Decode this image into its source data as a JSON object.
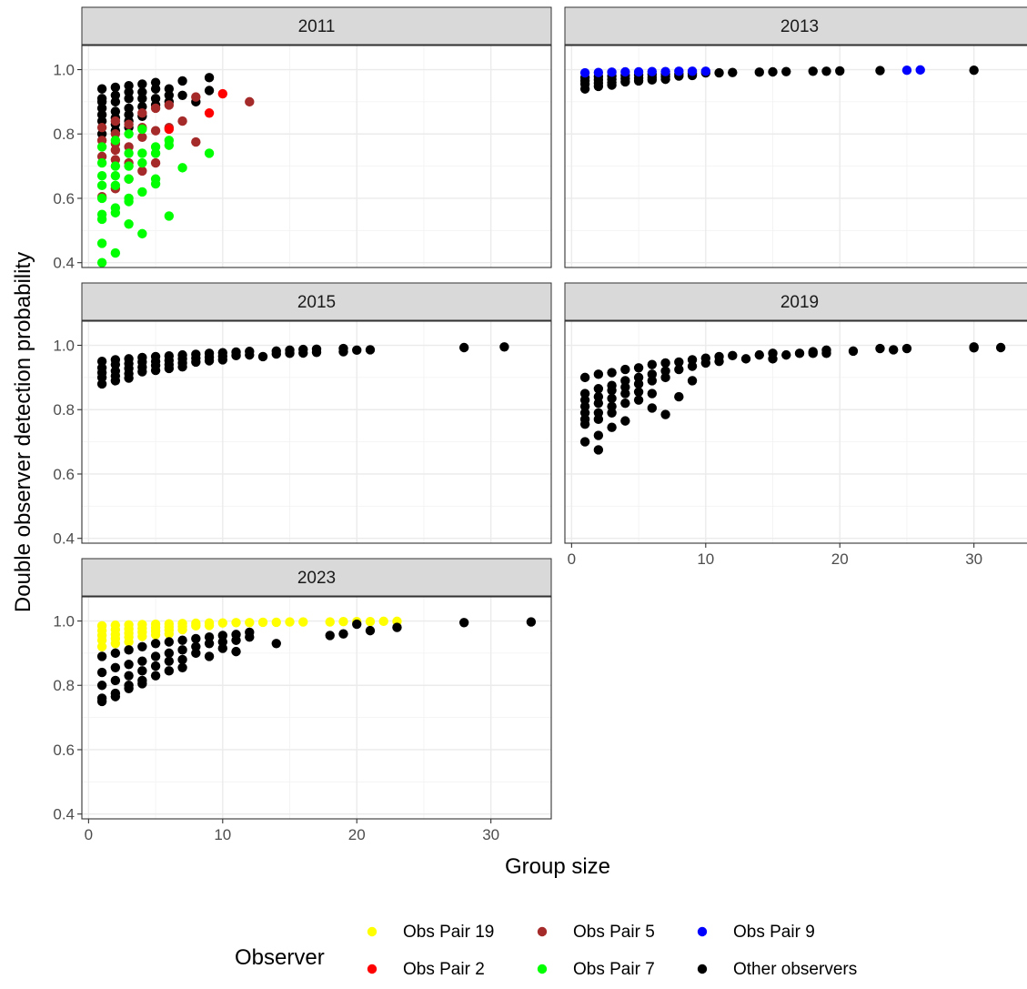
{
  "chart_data": {
    "type": "scatter",
    "xlabel": "Group size",
    "ylabel": "Double observer detection probability",
    "xlim": [
      -0.5,
      34.5
    ],
    "ylim": [
      0.385,
      1.075
    ],
    "x_ticks": [
      0,
      10,
      20,
      30
    ],
    "y_ticks": [
      0.4,
      0.6,
      0.8,
      1.0
    ],
    "y_tick_labels": [
      "0.4",
      "0.6",
      "0.8",
      "1.0"
    ],
    "grid": true,
    "legend": {
      "title": "Observer",
      "placement": "bottom",
      "entries": [
        {
          "name": "Obs Pair 19",
          "color": "#ffff00"
        },
        {
          "name": "Obs Pair 5",
          "color": "#a52a2a"
        },
        {
          "name": "Obs Pair 9",
          "color": "#0000ff"
        },
        {
          "name": "Obs Pair 2",
          "color": "#ff0000"
        },
        {
          "name": "Obs Pair 7",
          "color": "#00ff00"
        },
        {
          "name": "Other observers",
          "color": "#000000"
        }
      ]
    },
    "panels": [
      {
        "title": "2011",
        "series": [
          {
            "name": "Other observers",
            "x": [
              1,
              1,
              1,
              1,
              1,
              1,
              1,
              2,
              2,
              2,
              2,
              2,
              2,
              2,
              3,
              3,
              3,
              3,
              3,
              3,
              3,
              4,
              4,
              4,
              4,
              4,
              5,
              5,
              5,
              5,
              6,
              6,
              6,
              7,
              7,
              8,
              9,
              9
            ],
            "y": [
              0.94,
              0.91,
              0.9,
              0.88,
              0.86,
              0.84,
              0.8,
              0.945,
              0.92,
              0.9,
              0.87,
              0.85,
              0.83,
              0.81,
              0.95,
              0.93,
              0.91,
              0.88,
              0.86,
              0.84,
              0.82,
              0.955,
              0.93,
              0.91,
              0.885,
              0.855,
              0.96,
              0.94,
              0.91,
              0.89,
              0.94,
              0.92,
              0.9,
              0.965,
              0.92,
              0.9,
              0.975,
              0.935
            ]
          },
          {
            "name": "Obs Pair 5",
            "x": [
              1,
              1,
              1,
              1,
              2,
              2,
              2,
              2,
              2,
              2,
              3,
              3,
              3,
              3,
              4,
              4,
              4,
              4,
              5,
              5,
              5,
              6,
              6,
              7,
              8,
              8,
              12
            ],
            "y": [
              0.82,
              0.78,
              0.73,
              0.605,
              0.84,
              0.8,
              0.77,
              0.75,
              0.72,
              0.63,
              0.83,
              0.76,
              0.71,
              0.66,
              0.865,
              0.82,
              0.79,
              0.685,
              0.88,
              0.81,
              0.71,
              0.89,
              0.82,
              0.84,
              0.915,
              0.775,
              0.9
            ]
          },
          {
            "name": "Obs Pair 2",
            "x": [
              6,
              10,
              9
            ],
            "y": [
              0.815,
              0.925,
              0.865
            ]
          },
          {
            "name": "Obs Pair 7",
            "x": [
              1,
              1,
              1,
              1,
              1,
              1,
              1,
              1,
              1,
              2,
              2,
              2,
              2,
              2,
              2,
              2,
              3,
              3,
              3,
              3,
              3,
              3,
              3,
              4,
              4,
              4,
              4,
              4,
              5,
              5,
              5,
              5,
              6,
              6,
              6,
              7,
              9
            ],
            "y": [
              0.76,
              0.71,
              0.67,
              0.64,
              0.6,
              0.55,
              0.535,
              0.46,
              0.4,
              0.78,
              0.7,
              0.67,
              0.64,
              0.57,
              0.555,
              0.43,
              0.8,
              0.74,
              0.7,
              0.66,
              0.6,
              0.59,
              0.52,
              0.815,
              0.74,
              0.71,
              0.62,
              0.49,
              0.76,
              0.74,
              0.66,
              0.645,
              0.78,
              0.765,
              0.545,
              0.695,
              0.74
            ]
          }
        ]
      },
      {
        "title": "2013",
        "series": [
          {
            "name": "Other observers",
            "x": [
              1,
              1,
              1,
              1,
              2,
              2,
              2,
              2,
              3,
              3,
              3,
              3,
              4,
              4,
              4,
              5,
              5,
              5,
              6,
              6,
              6,
              7,
              7,
              7,
              8,
              8,
              9,
              9,
              10,
              11,
              12,
              14,
              15,
              16,
              18,
              19,
              20,
              23,
              30
            ],
            "y": [
              0.975,
              0.965,
              0.955,
              0.94,
              0.978,
              0.968,
              0.958,
              0.948,
              0.98,
              0.97,
              0.96,
              0.952,
              0.982,
              0.972,
              0.962,
              0.984,
              0.974,
              0.965,
              0.985,
              0.976,
              0.968,
              0.986,
              0.978,
              0.97,
              0.987,
              0.98,
              0.988,
              0.982,
              0.99,
              0.99,
              0.991,
              0.992,
              0.993,
              0.994,
              0.995,
              0.995,
              0.996,
              0.997,
              0.998
            ]
          },
          {
            "name": "Obs Pair 9",
            "x": [
              1,
              2,
              3,
              4,
              5,
              6,
              7,
              8,
              9,
              10,
              25,
              26
            ],
            "y": [
              0.99,
              0.991,
              0.992,
              0.993,
              0.993,
              0.994,
              0.994,
              0.995,
              0.995,
              0.995,
              0.998,
              0.999
            ]
          }
        ]
      },
      {
        "title": "2015",
        "series": [
          {
            "name": "Other observers",
            "x": [
              1,
              1,
              1,
              1,
              1,
              2,
              2,
              2,
              2,
              2,
              3,
              3,
              3,
              3,
              3,
              4,
              4,
              4,
              4,
              5,
              5,
              5,
              5,
              6,
              6,
              6,
              6,
              7,
              7,
              7,
              7,
              8,
              8,
              8,
              9,
              9,
              9,
              10,
              10,
              10,
              11,
              11,
              12,
              12,
              13,
              14,
              14,
              15,
              15,
              16,
              16,
              17,
              17,
              19,
              19,
              20,
              21,
              28,
              31
            ],
            "y": [
              0.95,
              0.93,
              0.915,
              0.9,
              0.88,
              0.955,
              0.94,
              0.92,
              0.905,
              0.89,
              0.958,
              0.943,
              0.928,
              0.912,
              0.898,
              0.962,
              0.948,
              0.932,
              0.918,
              0.965,
              0.95,
              0.937,
              0.922,
              0.967,
              0.953,
              0.94,
              0.928,
              0.97,
              0.958,
              0.945,
              0.933,
              0.972,
              0.96,
              0.948,
              0.975,
              0.963,
              0.952,
              0.977,
              0.966,
              0.955,
              0.979,
              0.968,
              0.981,
              0.97,
              0.965,
              0.982,
              0.973,
              0.985,
              0.975,
              0.987,
              0.976,
              0.988,
              0.978,
              0.99,
              0.98,
              0.985,
              0.986,
              0.993,
              0.995
            ]
          }
        ]
      },
      {
        "title": "2019",
        "series": [
          {
            "name": "Other observers",
            "x": [
              1,
              1,
              1,
              1,
              1,
              1,
              1,
              1,
              2,
              2,
              2,
              2,
              2,
              2,
              2,
              2,
              3,
              3,
              3,
              3,
              3,
              3,
              3,
              4,
              4,
              4,
              4,
              4,
              4,
              5,
              5,
              5,
              5,
              5,
              6,
              6,
              6,
              6,
              6,
              7,
              7,
              7,
              7,
              8,
              8,
              8,
              9,
              9,
              9,
              10,
              10,
              11,
              11,
              12,
              13,
              14,
              15,
              15,
              16,
              17,
              18,
              18,
              19,
              19,
              21,
              23,
              24,
              25,
              30,
              30,
              32
            ],
            "y": [
              0.9,
              0.85,
              0.83,
              0.81,
              0.79,
              0.77,
              0.755,
              0.7,
              0.91,
              0.865,
              0.84,
              0.82,
              0.79,
              0.77,
              0.72,
              0.675,
              0.915,
              0.875,
              0.86,
              0.835,
              0.81,
              0.79,
              0.745,
              0.925,
              0.89,
              0.87,
              0.85,
              0.82,
              0.765,
              0.93,
              0.9,
              0.88,
              0.855,
              0.83,
              0.94,
              0.91,
              0.89,
              0.85,
              0.805,
              0.945,
              0.92,
              0.9,
              0.785,
              0.948,
              0.925,
              0.84,
              0.955,
              0.935,
              0.89,
              0.96,
              0.945,
              0.965,
              0.95,
              0.968,
              0.958,
              0.97,
              0.975,
              0.958,
              0.97,
              0.975,
              0.98,
              0.975,
              0.985,
              0.975,
              0.982,
              0.99,
              0.986,
              0.99,
              0.995,
              0.992,
              0.993
            ]
          }
        ]
      },
      {
        "title": "2023",
        "series": [
          {
            "name": "Obs Pair 19",
            "x": [
              1,
              1,
              1,
              1,
              1,
              2,
              2,
              2,
              2,
              2,
              3,
              3,
              3,
              3,
              3,
              4,
              4,
              4,
              4,
              5,
              5,
              5,
              5,
              6,
              6,
              6,
              6,
              7,
              7,
              7,
              8,
              8,
              9,
              9,
              10,
              11,
              12,
              13,
              14,
              15,
              16,
              18,
              19,
              20,
              21,
              22,
              23
            ],
            "y": [
              0.985,
              0.97,
              0.955,
              0.94,
              0.92,
              0.987,
              0.973,
              0.958,
              0.945,
              0.93,
              0.988,
              0.975,
              0.962,
              0.95,
              0.935,
              0.989,
              0.977,
              0.965,
              0.952,
              0.99,
              0.979,
              0.968,
              0.957,
              0.991,
              0.981,
              0.971,
              0.96,
              0.992,
              0.983,
              0.973,
              0.993,
              0.985,
              0.994,
              0.986,
              0.994,
              0.995,
              0.995,
              0.996,
              0.996,
              0.997,
              0.997,
              0.997,
              0.998,
              0.998,
              0.998,
              0.999,
              0.999
            ]
          },
          {
            "name": "Other observers",
            "x": [
              1,
              1,
              1,
              1,
              1,
              2,
              2,
              2,
              2,
              2,
              3,
              3,
              3,
              3,
              3,
              4,
              4,
              4,
              4,
              4,
              5,
              5,
              5,
              5,
              6,
              6,
              6,
              6,
              7,
              7,
              7,
              7,
              8,
              8,
              8,
              9,
              9,
              9,
              10,
              10,
              10,
              11,
              11,
              11,
              12,
              12,
              14,
              18,
              19,
              20,
              21,
              23,
              28,
              33
            ],
            "y": [
              0.89,
              0.84,
              0.8,
              0.76,
              0.75,
              0.9,
              0.855,
              0.815,
              0.775,
              0.765,
              0.91,
              0.865,
              0.83,
              0.8,
              0.79,
              0.92,
              0.875,
              0.845,
              0.815,
              0.805,
              0.93,
              0.89,
              0.86,
              0.83,
              0.935,
              0.9,
              0.875,
              0.845,
              0.94,
              0.91,
              0.88,
              0.855,
              0.945,
              0.92,
              0.9,
              0.95,
              0.93,
              0.89,
              0.955,
              0.935,
              0.915,
              0.958,
              0.94,
              0.905,
              0.965,
              0.95,
              0.93,
              0.955,
              0.96,
              0.99,
              0.97,
              0.98,
              0.995,
              0.997
            ]
          }
        ]
      }
    ]
  }
}
